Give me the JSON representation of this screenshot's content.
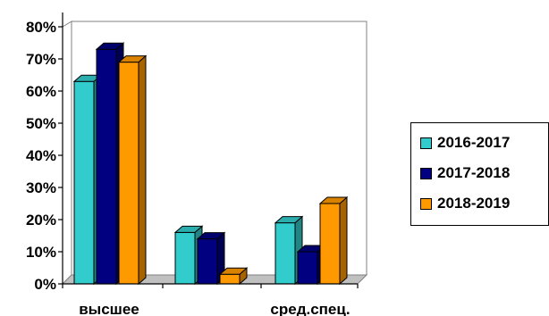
{
  "chart_data": {
    "type": "bar",
    "style": "3d-clustered-column",
    "title": "",
    "xlabel": "",
    "ylabel": "",
    "ylim": [
      0,
      80
    ],
    "yticks": [
      "0%",
      "10%",
      "20%",
      "30%",
      "40%",
      "50%",
      "60%",
      "70%",
      "80%"
    ],
    "categories": [
      "высшее",
      "",
      "сред.спец."
    ],
    "series": [
      {
        "name": "2016-2017",
        "color": "#33CCCC",
        "values": [
          63,
          16,
          19
        ]
      },
      {
        "name": "2017-2018",
        "color": "#000080",
        "values": [
          73,
          14,
          10
        ]
      },
      {
        "name": "2018-2019",
        "color": "#FF9900",
        "values": [
          69,
          3,
          25
        ]
      }
    ],
    "grid": false,
    "legend_position": "right"
  }
}
